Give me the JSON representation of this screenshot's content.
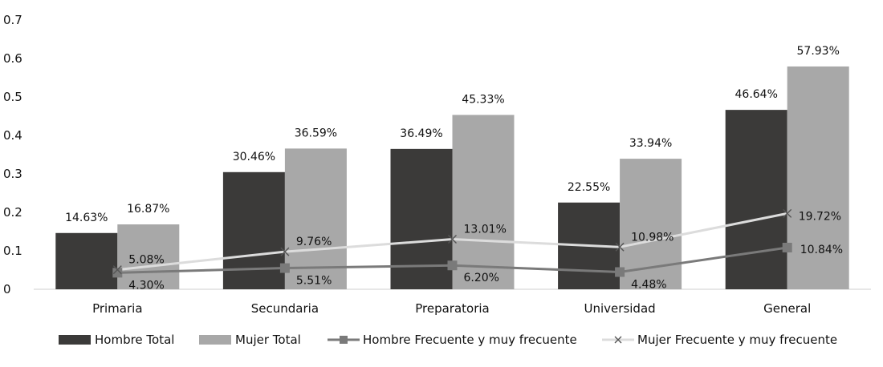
{
  "chart_data": {
    "type": "bar",
    "categories": [
      "Primaria",
      "Secundaria",
      "Preparatoria",
      "Universidad",
      "General"
    ],
    "ylim": [
      0,
      0.7
    ],
    "yticks": [
      "0",
      "0.1",
      "0.2",
      "0.3",
      "0.4",
      "0.5",
      "0.6",
      "0.7"
    ],
    "grid": false,
    "legend_position": "bottom",
    "colors": {
      "hombre_total": "#3b3a39",
      "mujer_total": "#a8a8a8",
      "hombre_frecuente": "#7a7a7a",
      "mujer_frecuente": "#dcdcdc"
    },
    "series": [
      {
        "name": "Hombre Total",
        "kind": "bar",
        "values": [
          0.1463,
          0.3046,
          0.3649,
          0.2255,
          0.4664
        ],
        "labels": [
          "14.63%",
          "30.46%",
          "36.49%",
          "22.55%",
          "46.64%"
        ]
      },
      {
        "name": "Mujer Total",
        "kind": "bar",
        "values": [
          0.1687,
          0.3659,
          0.4533,
          0.3394,
          0.5793
        ],
        "labels": [
          "16.87%",
          "36.59%",
          "45.33%",
          "33.94%",
          "57.93%"
        ]
      },
      {
        "name": "Hombre Frecuente y muy frecuente",
        "kind": "line",
        "marker": "square",
        "values": [
          0.043,
          0.0551,
          0.062,
          0.0448,
          0.1084
        ],
        "labels": [
          "4.30%",
          "5.51%",
          "6.20%",
          "4.48%",
          "10.84%"
        ]
      },
      {
        "name": "Mujer Frecuente y muy frecuente",
        "kind": "line",
        "marker": "x",
        "values": [
          0.0508,
          0.0976,
          0.1301,
          0.1098,
          0.1972
        ],
        "labels": [
          "5.08%",
          "9.76%",
          "13.01%",
          "10.98%",
          "19.72%"
        ]
      }
    ]
  }
}
